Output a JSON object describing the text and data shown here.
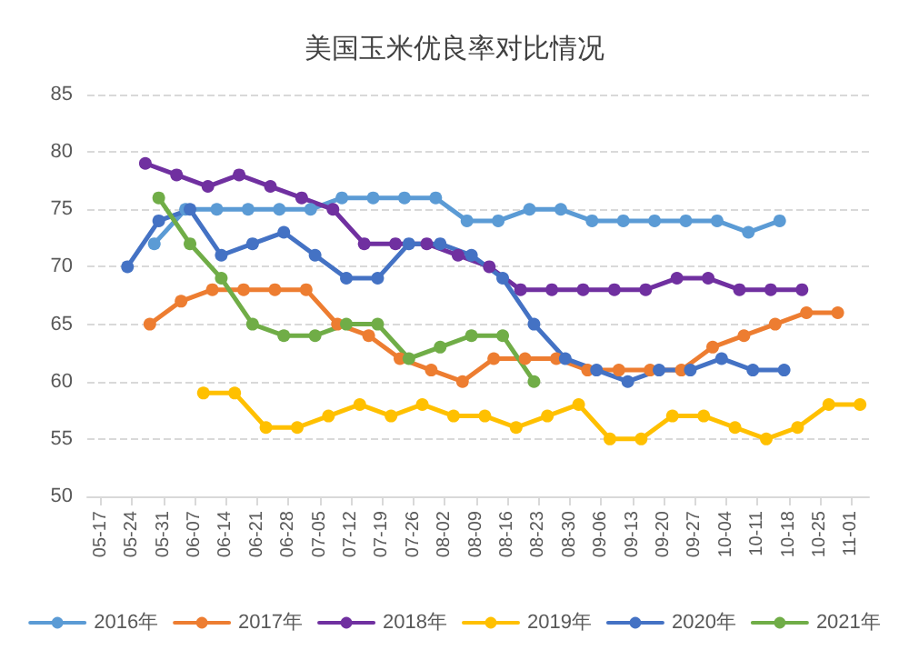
{
  "chart_data": {
    "type": "line",
    "title": "美国玉米优良率对比情况",
    "xlim": [
      "--05-14",
      "--11-05"
    ],
    "xticks": [
      {
        "value": "--05-17",
        "label": "05-17"
      },
      {
        "value": "--05-24",
        "label": "05-24"
      },
      {
        "value": "--05-31",
        "label": "05-31"
      },
      {
        "value": "--06-07",
        "label": "06-07"
      },
      {
        "value": "--06-14",
        "label": "06-14"
      },
      {
        "value": "--06-21",
        "label": "06-21"
      },
      {
        "value": "--06-28",
        "label": "06-28"
      },
      {
        "value": "--07-05",
        "label": "07-05"
      },
      {
        "value": "--07-12",
        "label": "07-12"
      },
      {
        "value": "--07-19",
        "label": "07-19"
      },
      {
        "value": "--07-26",
        "label": "07-26"
      },
      {
        "value": "--08-02",
        "label": "08-02"
      },
      {
        "value": "--08-09",
        "label": "08-09"
      },
      {
        "value": "--08-16",
        "label": "08-16"
      },
      {
        "value": "--08-23",
        "label": "08-23"
      },
      {
        "value": "--08-30",
        "label": "08-30"
      },
      {
        "value": "--09-06",
        "label": "09-06"
      },
      {
        "value": "--09-13",
        "label": "09-13"
      },
      {
        "value": "--09-20",
        "label": "09-20"
      },
      {
        "value": "--09-27",
        "label": "09-27"
      },
      {
        "value": "--10-04",
        "label": "10-04"
      },
      {
        "value": "--10-11",
        "label": "10-11"
      },
      {
        "value": "--10-18",
        "label": "10-18"
      },
      {
        "value": "--10-25",
        "label": "10-25"
      },
      {
        "value": "--11-01",
        "label": "11-01"
      }
    ],
    "ylim": [
      50,
      85
    ],
    "yticks": [
      50,
      55,
      60,
      65,
      70,
      75,
      80,
      85
    ],
    "grid": "y",
    "legend": "bottom",
    "marker": "circle",
    "series": [
      {
        "name": "2016年",
        "color": "#5b9bd5",
        "x": [
          "--05-29",
          "--06-05",
          "--06-12",
          "--06-19",
          "--06-26",
          "--07-03",
          "--07-10",
          "--07-17",
          "--07-24",
          "--07-31",
          "--08-07",
          "--08-14",
          "--08-21",
          "--08-28",
          "--09-04",
          "--09-11",
          "--09-18",
          "--09-25",
          "--10-02",
          "--10-09",
          "--10-16"
        ],
        "values": [
          72,
          75,
          75,
          75,
          75,
          75,
          76,
          76,
          76,
          76,
          74,
          74,
          75,
          75,
          74,
          74,
          74,
          74,
          74,
          73,
          74
        ]
      },
      {
        "name": "2017年",
        "color": "#ed7d31",
        "x": [
          "--05-28",
          "--06-04",
          "--06-11",
          "--06-18",
          "--06-25",
          "--07-02",
          "--07-09",
          "--07-16",
          "--07-23",
          "--07-30",
          "--08-06",
          "--08-13",
          "--08-20",
          "--08-27",
          "--09-03",
          "--09-10",
          "--09-17",
          "--09-24",
          "--10-01",
          "--10-08",
          "--10-15",
          "--10-22",
          "--10-29"
        ],
        "values": [
          65,
          67,
          68,
          68,
          68,
          68,
          65,
          64,
          62,
          61,
          60,
          62,
          62,
          62,
          61,
          61,
          61,
          61,
          63,
          64,
          65,
          66,
          66
        ]
      },
      {
        "name": "2018年",
        "color": "#7030a0",
        "x": [
          "--05-27",
          "--06-03",
          "--06-10",
          "--06-17",
          "--06-24",
          "--07-01",
          "--07-08",
          "--07-15",
          "--07-22",
          "--07-29",
          "--08-05",
          "--08-12",
          "--08-19",
          "--08-26",
          "--09-02",
          "--09-09",
          "--09-16",
          "--09-23",
          "--09-30",
          "--10-07",
          "--10-14",
          "--10-21"
        ],
        "values": [
          79,
          78,
          77,
          78,
          77,
          76,
          75,
          72,
          72,
          72,
          71,
          70,
          68,
          68,
          68,
          68,
          68,
          69,
          69,
          68,
          68,
          68
        ]
      },
      {
        "name": "2019年",
        "color": "#ffc000",
        "x": [
          "--06-09",
          "--06-16",
          "--06-23",
          "--06-30",
          "--07-07",
          "--07-14",
          "--07-21",
          "--07-28",
          "--08-04",
          "--08-11",
          "--08-18",
          "--08-25",
          "--09-01",
          "--09-08",
          "--09-15",
          "--09-22",
          "--09-29",
          "--10-06",
          "--10-13",
          "--10-20",
          "--10-27",
          "--11-03"
        ],
        "values": [
          59,
          59,
          56,
          56,
          57,
          58,
          57,
          58,
          57,
          57,
          56,
          57,
          58,
          55,
          55,
          57,
          57,
          56,
          55,
          56,
          58,
          58
        ]
      },
      {
        "name": "2020年",
        "color": "#4472c4",
        "x": [
          "--05-23",
          "--05-30",
          "--06-06",
          "--06-13",
          "--06-20",
          "--06-27",
          "--07-04",
          "--07-11",
          "--07-18",
          "--07-25",
          "--08-01",
          "--08-08",
          "--08-15",
          "--08-22",
          "--08-29",
          "--09-05",
          "--09-12",
          "--09-19",
          "--09-26",
          "--10-03",
          "--10-10",
          "--10-17"
        ],
        "values": [
          70,
          74,
          75,
          71,
          72,
          73,
          71,
          69,
          69,
          72,
          72,
          71,
          69,
          65,
          62,
          61,
          60,
          61,
          61,
          62,
          61,
          61
        ]
      },
      {
        "name": "2021年",
        "color": "#70ad47",
        "x": [
          "--05-30",
          "--06-06",
          "--06-13",
          "--06-20",
          "--06-27",
          "--07-04",
          "--07-11",
          "--07-18",
          "--07-25",
          "--08-01",
          "--08-08",
          "--08-15",
          "--08-22"
        ],
        "values": [
          76,
          72,
          69,
          65,
          64,
          64,
          65,
          65,
          62,
          63,
          64,
          64,
          60
        ]
      }
    ]
  }
}
